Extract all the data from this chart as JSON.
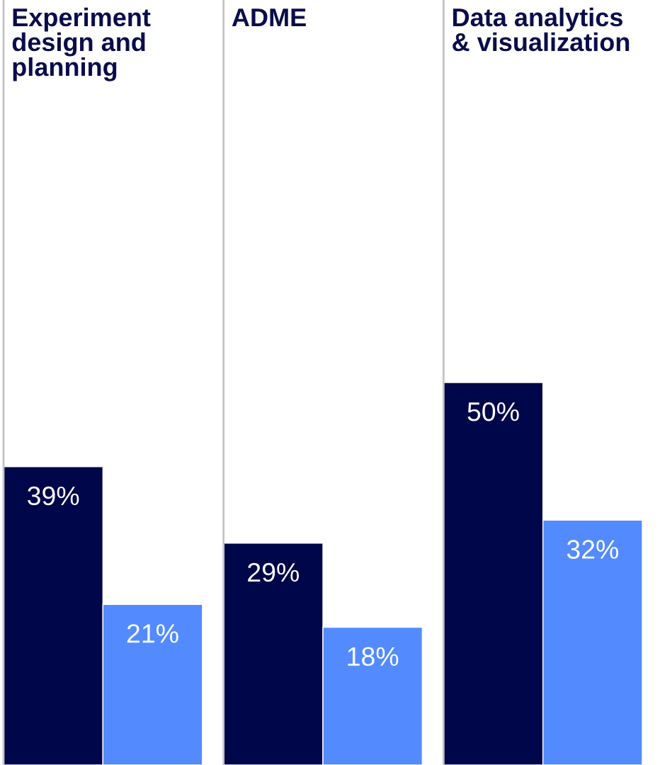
{
  "chart_data": {
    "type": "bar",
    "categories": [
      "Experiment\ndesign and\nplanning",
      "ADME",
      "Data analytics\n& visualization"
    ],
    "series": [
      {
        "color": "#00064a",
        "values": [
          39,
          29,
          50
        ],
        "value_labels": [
          "39%",
          "29%",
          "50%"
        ]
      },
      {
        "color": "#538bff",
        "values": [
          21,
          18,
          32
        ],
        "value_labels": [
          "21%",
          "18%",
          "32%"
        ]
      }
    ],
    "ylim": [
      0,
      100
    ],
    "tick_labels": "x"
  }
}
